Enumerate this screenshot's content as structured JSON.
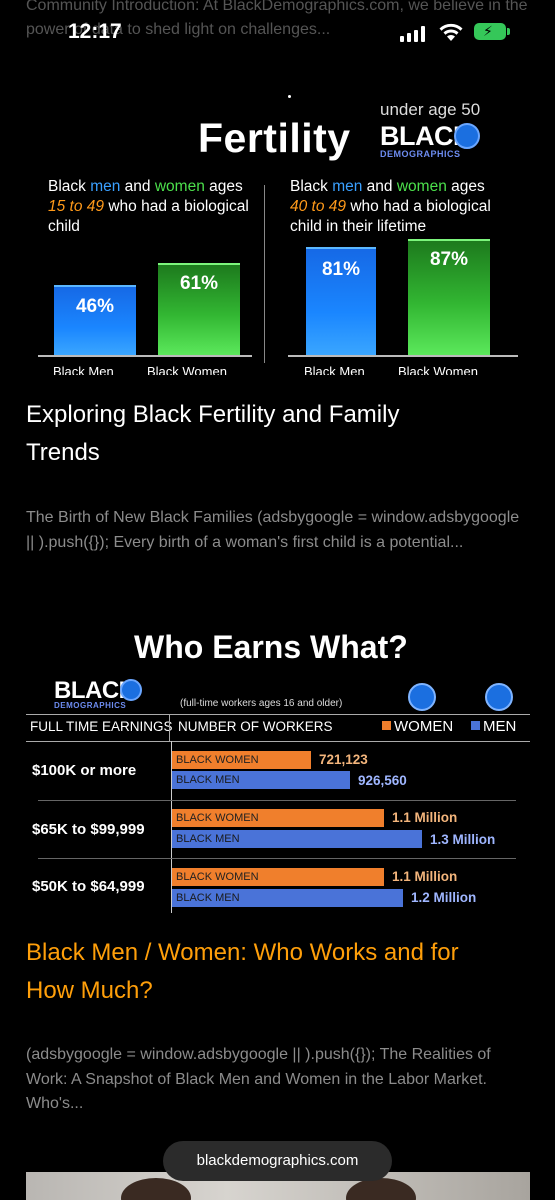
{
  "status_bar": {
    "time": "12:17"
  },
  "background_snippet": "Community Introduction: At BlackDemographics.com, we believe in the power of data to shed light on challenges...",
  "article1": {
    "image": {
      "title": "Fertility",
      "badge_text": "under age 50",
      "logo_main": "BLACK",
      "logo_sub": "DEMOGRAPHICS",
      "left_panel": {
        "text_pre": "Black ",
        "men": "men",
        "and": " and ",
        "women": "women",
        "text_post": " ages",
        "range": "15 to 49",
        "text_end": " who had a biological child",
        "men_value": "46%",
        "women_value": "61%",
        "men_label": "Black Men",
        "women_label": "Black Women"
      },
      "right_panel": {
        "text_pre": "Black ",
        "men": "men",
        "and": " and ",
        "women": "women",
        "text_post": " ages",
        "range": "40 to 49",
        "text_end": " who had a biological child in their lifetime",
        "men_value": "81%",
        "women_value": "87%",
        "men_label": "Black Men",
        "women_label": "Black Women"
      }
    },
    "title_line1": "Exploring Black Fertility and Family",
    "title_line2": "Trends",
    "snippet": "The Birth of New Black Families (adsbygoogle = window.adsbygoogle || ).push({}); Every birth of a woman's first child is a potential..."
  },
  "article2": {
    "image": {
      "title": "Who Earns What?",
      "logo_main": "BLACK",
      "logo_sub": "DEMOGRAPHICS",
      "subtitle": "(full-time workers ages 16 and older)",
      "col1": "FULL TIME EARNINGS",
      "col2": "NUMBER OF WORKERS",
      "legend_women": "WOMEN",
      "legend_men": "MEN",
      "bar_women_label": "BLACK WOMEN",
      "bar_men_label": "BLACK MEN",
      "rows": [
        {
          "label": "$100K or more",
          "women_value": "721,123",
          "men_value": "926,560",
          "women_count": 721123,
          "men_count": 926560
        },
        {
          "label": "$65K to $99,999",
          "women_value": "1.1 Million",
          "men_value": "1.3 Million",
          "women_count": 1100000,
          "men_count": 1300000
        },
        {
          "label": "$50K to $64,999",
          "women_value": "1.1 Million",
          "men_value": "1.2 Million",
          "women_count": 1100000,
          "men_count": 1200000
        }
      ],
      "colors": {
        "women": "#f07f2c",
        "men": "#4a73d8"
      }
    },
    "title_line1": "Black Men / Women: Who Works and for",
    "title_line2": "How Much?",
    "snippet": "(adsbygoogle = window.adsbygoogle || ).push({}); The Realities of Work: A Snapshot of Black Men and Women in the Labor Market. Who's..."
  },
  "url_bar": {
    "domain": "blackdemographics.com"
  },
  "colors": {
    "accent_orange": "#ff9f0a",
    "snippet_gray": "#8c8c8c"
  }
}
